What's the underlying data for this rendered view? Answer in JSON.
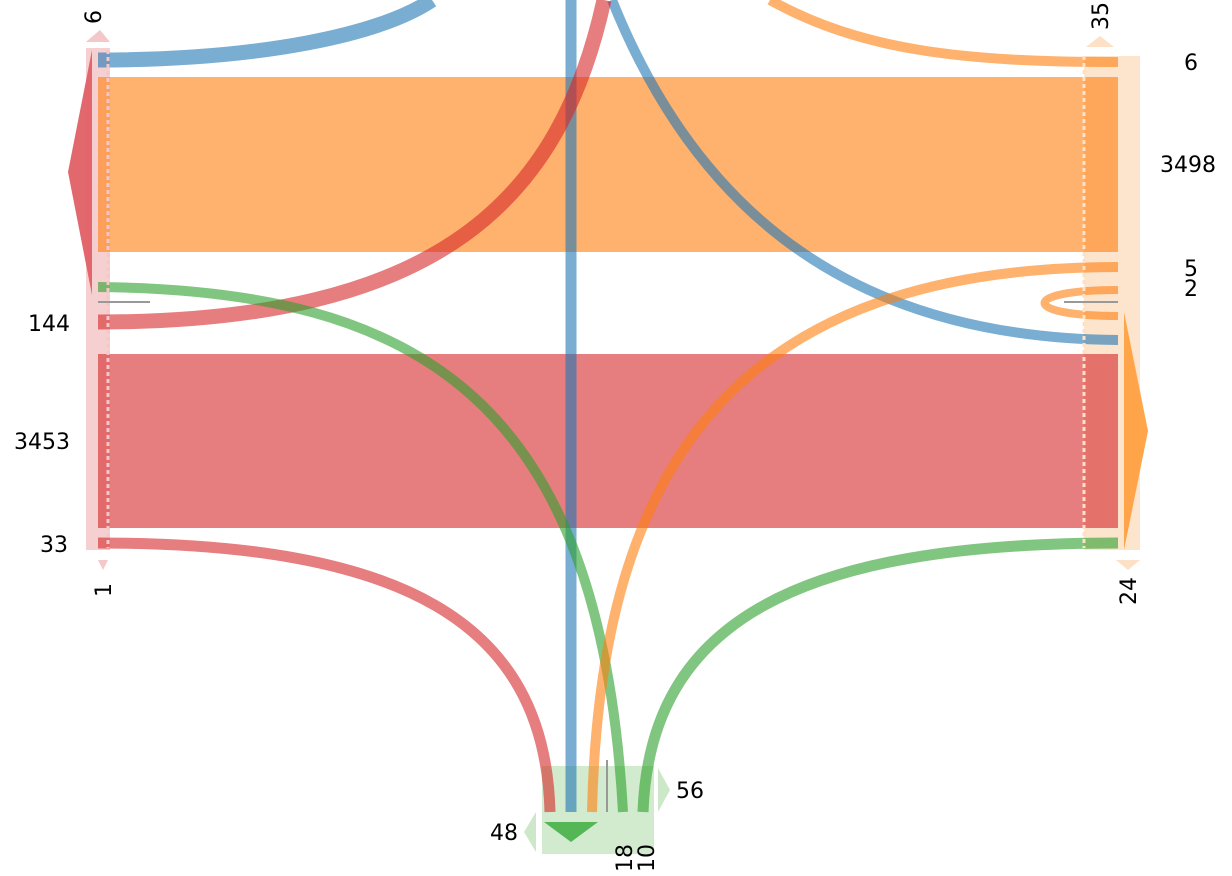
{
  "colors": {
    "blue": "#1f77b4",
    "orange": "#ff7f0e",
    "red": "#d62728",
    "green": "#2ca02c",
    "divider": "#999999"
  },
  "nodes": {
    "left_top": "6",
    "left_144": "144",
    "left_3453": "3453",
    "left_33": "33",
    "left_bottom": "1",
    "right_top": "35",
    "right_6": "6",
    "right_3498": "3498",
    "right_5": "5",
    "right_2": "2",
    "right_bottom": "24",
    "bottom_56": "56",
    "bottom_48": "48",
    "bottom_18": "18",
    "bottom_10": "10"
  },
  "flows": [
    {
      "id": "left-to-right-orange",
      "value": 3498,
      "color": "orange"
    },
    {
      "id": "left-to-right-red",
      "value": 3453,
      "color": "red"
    },
    {
      "id": "left-to-top-blue",
      "value": 6,
      "color": "blue"
    },
    {
      "id": "left-to-top-red",
      "value": 144,
      "color": "red"
    },
    {
      "id": "left-to-bottom-green",
      "value": 18,
      "color": "green"
    },
    {
      "id": "left-to-bottom-red",
      "value": 33,
      "color": "red"
    },
    {
      "id": "right-to-top-orange",
      "value": 6,
      "color": "orange"
    },
    {
      "id": "right-to-top-blue",
      "value": 35,
      "color": "blue"
    },
    {
      "id": "right-to-bottom-orange",
      "value": 5,
      "color": "orange"
    },
    {
      "id": "right-to-bottom-green",
      "value": 24,
      "color": "green"
    },
    {
      "id": "right-self-orange",
      "value": 2,
      "color": "orange"
    },
    {
      "id": "top-to-bottom-blue",
      "value": 10,
      "color": "blue"
    }
  ]
}
